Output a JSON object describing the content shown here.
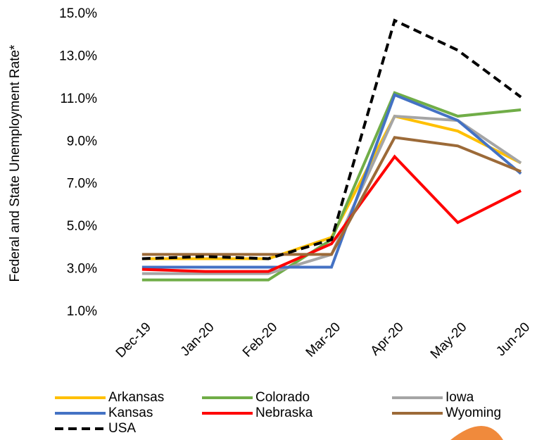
{
  "chart_data": {
    "type": "line",
    "y_label": "Federal and State Unemployment Rate*",
    "categories": [
      "Dec-19",
      "Jan-20",
      "Feb-20",
      "Mar-20",
      "Apr-20",
      "May-20",
      "Jun-20"
    ],
    "series": [
      {
        "name": "Arkansas",
        "color": "#ffc000",
        "style": "solid",
        "values": [
          3.5,
          3.5,
          3.5,
          4.5,
          10.2,
          9.5,
          8.0
        ]
      },
      {
        "name": "Colorado",
        "color": "#70ad47",
        "style": "solid",
        "values": [
          2.5,
          2.5,
          2.5,
          4.4,
          11.3,
          10.2,
          10.5
        ]
      },
      {
        "name": "Iowa",
        "color": "#a5a5a5",
        "style": "solid",
        "values": [
          2.8,
          2.8,
          2.8,
          3.7,
          10.2,
          10.0,
          8.0
        ]
      },
      {
        "name": "Kansas",
        "color": "#4472c4",
        "style": "solid",
        "values": [
          3.1,
          3.1,
          3.1,
          3.1,
          11.2,
          10.0,
          7.5
        ]
      },
      {
        "name": "Nebraska",
        "color": "#ff0000",
        "style": "solid",
        "values": [
          3.0,
          2.9,
          2.9,
          4.2,
          8.3,
          5.2,
          6.7
        ]
      },
      {
        "name": "Wyoming",
        "color": "#9c6a38",
        "style": "solid",
        "values": [
          3.7,
          3.7,
          3.7,
          3.7,
          9.2,
          8.8,
          7.6
        ]
      },
      {
        "name": "USA",
        "color": "#000000",
        "style": "dashed",
        "values": [
          3.5,
          3.6,
          3.5,
          4.4,
          14.7,
          13.3,
          11.1
        ]
      }
    ],
    "ylim": [
      1,
      15
    ],
    "yticks": [
      {
        "value": 1,
        "label": "1.0%"
      },
      {
        "value": 3,
        "label": "3.0%"
      },
      {
        "value": 5,
        "label": "5.0%"
      },
      {
        "value": 7,
        "label": "7.0%"
      },
      {
        "value": 9,
        "label": "9.0%"
      },
      {
        "value": 11,
        "label": "11.0%"
      },
      {
        "value": 13,
        "label": "13.0%"
      },
      {
        "value": 15,
        "label": "15.0%"
      }
    ],
    "grid": false,
    "legend": "bottom"
  }
}
